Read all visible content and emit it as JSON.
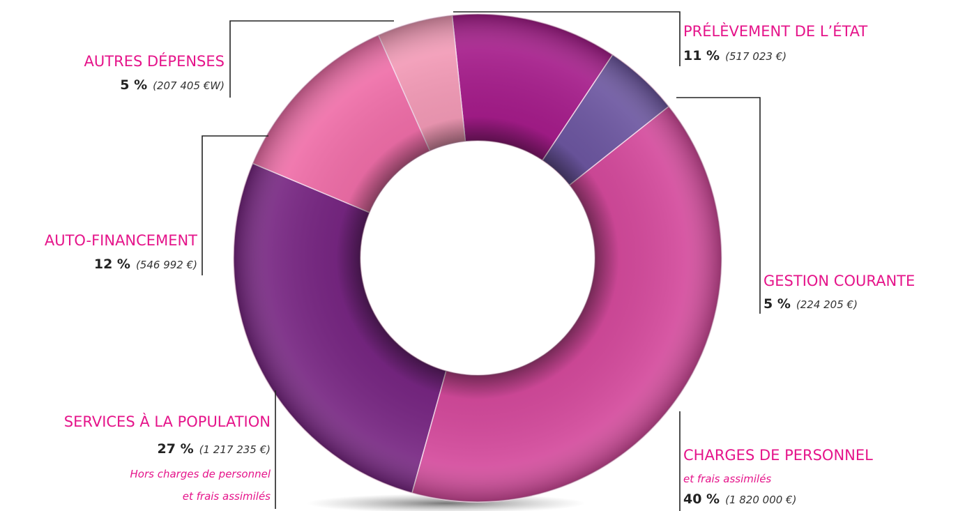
{
  "chart_data": {
    "type": "pie",
    "donut": true,
    "categories": [
      "PRÉLÈVEMENT DE L’ÉTAT",
      "GESTION COURANTE",
      "CHARGES DE PERSONNEL",
      "SERVICES À LA POPULATION",
      "AUTO-FINANCEMENT",
      "AUTRES DÉPENSES"
    ],
    "values": [
      11,
      5,
      40,
      27,
      12,
      5
    ],
    "value_labels": [
      "11 %",
      "5 %",
      "40 %",
      "27 %",
      "12 %",
      "5 %"
    ],
    "amounts": [
      "(517 023 €)",
      "(224 205 €)",
      "(1 820 000 €)",
      "(1 217 235 €)",
      "(546 992 €)",
      "(207 405 €W)"
    ],
    "notes": [
      [],
      [],
      [
        "et frais assimilés"
      ],
      [
        "Hors charges de personnel",
        "et frais assimilés"
      ],
      [],
      []
    ],
    "colors": [
      "#a51c8a",
      "#6c56a0",
      "#d44a9c",
      "#772682",
      "#ef6ea8",
      "#f29ab6"
    ]
  }
}
